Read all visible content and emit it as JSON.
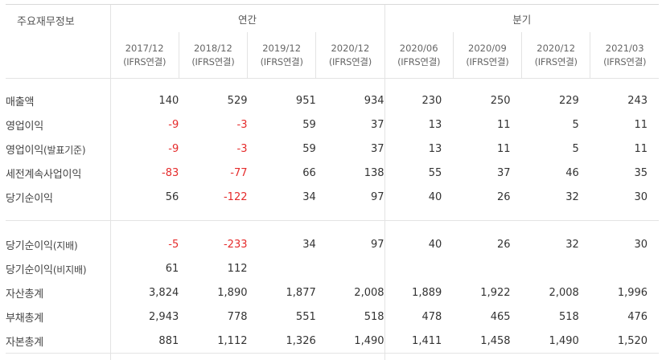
{
  "header": {
    "title": "주요재무정보",
    "annual_group": "연간",
    "quarter_group": "분기",
    "periods": [
      {
        "date": "2017/12",
        "basis": "(IFRS연결)"
      },
      {
        "date": "2018/12",
        "basis": "(IFRS연결)"
      },
      {
        "date": "2019/12",
        "basis": "(IFRS연결)"
      },
      {
        "date": "2020/12",
        "basis": "(IFRS연결)"
      },
      {
        "date": "2020/06",
        "basis": "(IFRS연결)"
      },
      {
        "date": "2020/09",
        "basis": "(IFRS연결)"
      },
      {
        "date": "2020/12",
        "basis": "(IFRS연결)"
      },
      {
        "date": "2021/03",
        "basis": "(IFRS연결)"
      }
    ]
  },
  "section1": [
    {
      "label": "매출액",
      "sub": "",
      "values": [
        "140",
        "529",
        "951",
        "934",
        "230",
        "250",
        "229",
        "243"
      ]
    },
    {
      "label": "영업이익",
      "sub": "",
      "values": [
        "-9",
        "-3",
        "59",
        "37",
        "13",
        "11",
        "5",
        "11"
      ]
    },
    {
      "label": "영업이익",
      "sub": "(발표기준)",
      "values": [
        "-9",
        "-3",
        "59",
        "37",
        "13",
        "11",
        "5",
        "11"
      ]
    },
    {
      "label": "세전계속사업이익",
      "sub": "",
      "values": [
        "-83",
        "-77",
        "66",
        "138",
        "55",
        "37",
        "46",
        "35"
      ]
    },
    {
      "label": "당기순이익",
      "sub": "",
      "values": [
        "56",
        "-122",
        "34",
        "97",
        "40",
        "26",
        "32",
        "30"
      ]
    }
  ],
  "section2": [
    {
      "label": "당기순이익",
      "sub": "(지배)",
      "values": [
        "-5",
        "-233",
        "34",
        "97",
        "40",
        "26",
        "32",
        "30"
      ]
    },
    {
      "label": "당기순이익",
      "sub": "(비지배)",
      "values": [
        "61",
        "112",
        "",
        "",
        "",
        "",
        "",
        ""
      ]
    },
    {
      "label": "자산총계",
      "sub": "",
      "values": [
        "3,824",
        "1,890",
        "1,877",
        "2,008",
        "1,889",
        "1,922",
        "2,008",
        "1,996"
      ]
    },
    {
      "label": "부채총계",
      "sub": "",
      "values": [
        "2,943",
        "778",
        "551",
        "518",
        "478",
        "465",
        "518",
        "476"
      ]
    },
    {
      "label": "자본총계",
      "sub": "",
      "values": [
        "881",
        "1,112",
        "1,326",
        "1,490",
        "1,411",
        "1,458",
        "1,490",
        "1,520"
      ]
    }
  ],
  "colors": {
    "negative": "#e52b2b",
    "text": "#333333",
    "border": "#e3e3e3"
  }
}
